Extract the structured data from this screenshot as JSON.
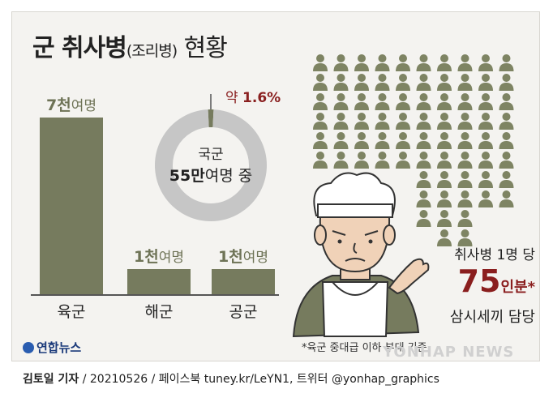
{
  "header": {
    "title_main": "군 취사병",
    "title_paren": "(조리병)",
    "title_tail": " 현황"
  },
  "chart_data": [
    {
      "type": "bar",
      "categories": [
        "육군",
        "해군",
        "공군"
      ],
      "values": [
        7000,
        1000,
        1000
      ],
      "value_labels": [
        {
          "num": "7천",
          "unit": "여명"
        },
        {
          "num": "1천",
          "unit": "여명"
        },
        {
          "num": "1천",
          "unit": "여명"
        }
      ],
      "ylim": [
        0,
        7000
      ]
    },
    {
      "type": "pie",
      "style": "donut",
      "center_line1": "국군",
      "center_num": "55만",
      "center_rest": "여명 중",
      "slice_label_prefix": "약 ",
      "slice_label_value": "1.6%",
      "values": [
        1.6,
        98.4
      ],
      "colors": [
        "#767b5e",
        "#c6c6c6"
      ]
    }
  ],
  "ratio": {
    "line1": "취사병 1명 당",
    "number": "75",
    "unit": "인분*",
    "line3": "삼시세끼 담당"
  },
  "pictogram": {
    "count": 75,
    "icon": "person-icon",
    "color": "#7e8463"
  },
  "footnote": "*육군 중대급 이하 부대 기준",
  "logo_text": "연합뉴스",
  "watermark": "YONHAP NEWS",
  "credit": {
    "author": "김토일 기자",
    "rest": " / 20210526 / 페이스북 tuney.kr/LeYN1, 트위터 @yonhap_graphics"
  },
  "colors": {
    "bar": "#767b5e",
    "accent_red": "#8a1e1e",
    "donut_rest": "#c6c6c6"
  }
}
